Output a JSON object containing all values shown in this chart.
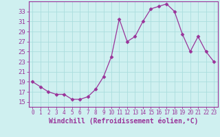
{
  "x": [
    0,
    1,
    2,
    3,
    4,
    5,
    6,
    7,
    8,
    9,
    10,
    11,
    12,
    13,
    14,
    15,
    16,
    17,
    18,
    19,
    20,
    21,
    22,
    23
  ],
  "y": [
    19,
    18,
    17,
    16.5,
    16.5,
    15.5,
    15.5,
    16,
    17.5,
    20,
    24,
    31.5,
    27,
    28,
    31,
    33.5,
    34,
    34.5,
    33,
    28.5,
    25,
    28,
    25,
    23
  ],
  "xlabel": "Windchill (Refroidissement éolien,°C)",
  "ylim": [
    14.0,
    35.0
  ],
  "xlim": [
    -0.5,
    23.5
  ],
  "yticks": [
    15,
    17,
    19,
    21,
    23,
    25,
    27,
    29,
    31,
    33
  ],
  "xticks": [
    0,
    1,
    2,
    3,
    4,
    5,
    6,
    7,
    8,
    9,
    10,
    11,
    12,
    13,
    14,
    15,
    16,
    17,
    18,
    19,
    20,
    21,
    22,
    23
  ],
  "line_color": "#993399",
  "marker": "D",
  "marker_size": 2.5,
  "bg_color": "#cff0f0",
  "grid_color": "#aadddd",
  "axis_color": "#993399",
  "tick_color": "#993399",
  "label_color": "#993399",
  "xlabel_fontsize": 7,
  "ytick_fontsize": 6.5,
  "xtick_fontsize": 5.5
}
